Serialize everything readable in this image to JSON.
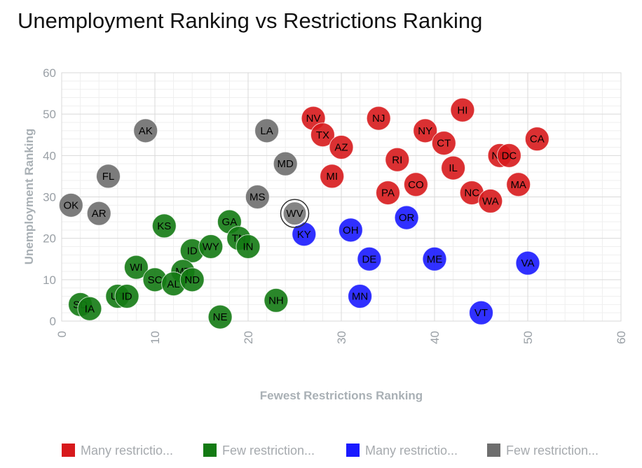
{
  "chart_data": {
    "type": "scatter",
    "title": "Unemployment Ranking vs Restrictions Ranking",
    "xlabel": "Fewest Restrictions Ranking",
    "ylabel": "Unemployment Ranking",
    "xlim": [
      0,
      60
    ],
    "ylim": [
      0,
      60
    ],
    "xticks": [
      "0",
      "10",
      "20",
      "30",
      "40",
      "50",
      "60"
    ],
    "yticks": [
      "0",
      "10",
      "20",
      "30",
      "40",
      "50",
      "60"
    ],
    "grid": true,
    "legend_position": "bottom",
    "highlighted_point": "WV",
    "series": [
      {
        "name": "Many restrictio...",
        "color": "#d7191c",
        "points": [
          {
            "label": "NV",
            "x": 27,
            "y": 49
          },
          {
            "label": "NJ",
            "x": 34,
            "y": 49
          },
          {
            "label": "HI",
            "x": 43,
            "y": 51
          },
          {
            "label": "NY",
            "x": 39,
            "y": 46
          },
          {
            "label": "TX",
            "x": 28,
            "y": 45
          },
          {
            "label": "CT",
            "x": 41,
            "y": 43
          },
          {
            "label": "AZ",
            "x": 30,
            "y": 42
          },
          {
            "label": "CA",
            "x": 51,
            "y": 44
          },
          {
            "label": "RI",
            "x": 36,
            "y": 39
          },
          {
            "label": "IL",
            "x": 42,
            "y": 37
          },
          {
            "label": "NM",
            "x": 47,
            "y": 40
          },
          {
            "label": "MI",
            "x": 29,
            "y": 35
          },
          {
            "label": "PA",
            "x": 35,
            "y": 31
          },
          {
            "label": "CO",
            "x": 38,
            "y": 33
          },
          {
            "label": "MA",
            "x": 49,
            "y": 33
          },
          {
            "label": "NC",
            "x": 44,
            "y": 31
          },
          {
            "label": "WA",
            "x": 46,
            "y": 29
          },
          {
            "label": "DC",
            "x": 48,
            "y": 40
          }
        ]
      },
      {
        "name": "Few restriction...",
        "color": "#137a13",
        "points": [
          {
            "label": "KS",
            "x": 11,
            "y": 23
          },
          {
            "label": "GA",
            "x": 18,
            "y": 24
          },
          {
            "label": "TN",
            "x": 19,
            "y": 20
          },
          {
            "label": "ID",
            "x": 14,
            "y": 17
          },
          {
            "label": "WY",
            "x": 16,
            "y": 18
          },
          {
            "label": "IN",
            "x": 20,
            "y": 18
          },
          {
            "label": "WI",
            "x": 8,
            "y": 13
          },
          {
            "label": "MT",
            "x": 13,
            "y": 12
          },
          {
            "label": "SC",
            "x": 10,
            "y": 10
          },
          {
            "label": "AL",
            "x": 12,
            "y": 9
          },
          {
            "label": "ND",
            "x": 14,
            "y": 10
          },
          {
            "label": "UT",
            "x": 6,
            "y": 6
          },
          {
            "label": "ID",
            "x": 7,
            "y": 6
          },
          {
            "label": "NH",
            "x": 23,
            "y": 5
          },
          {
            "label": "SD",
            "x": 2,
            "y": 4
          },
          {
            "label": "IA",
            "x": 3,
            "y": 3
          },
          {
            "label": "NE",
            "x": 17,
            "y": 1
          }
        ]
      },
      {
        "name": "Many restrictio...",
        "color": "#1a1aff",
        "points": [
          {
            "label": "OR",
            "x": 37,
            "y": 25
          },
          {
            "label": "OH",
            "x": 31,
            "y": 22
          },
          {
            "label": "KY",
            "x": 26,
            "y": 21
          },
          {
            "label": "DE",
            "x": 33,
            "y": 15
          },
          {
            "label": "ME",
            "x": 40,
            "y": 15
          },
          {
            "label": "VA",
            "x": 50,
            "y": 14
          },
          {
            "label": "MN",
            "x": 32,
            "y": 6
          },
          {
            "label": "VT",
            "x": 45,
            "y": 2
          }
        ]
      },
      {
        "name": "Few restriction...",
        "color": "#6e6e6e",
        "points": [
          {
            "label": "AK",
            "x": 9,
            "y": 46
          },
          {
            "label": "LA",
            "x": 22,
            "y": 46
          },
          {
            "label": "MD",
            "x": 24,
            "y": 38
          },
          {
            "label": "FL",
            "x": 5,
            "y": 35
          },
          {
            "label": "MS",
            "x": 21,
            "y": 30
          },
          {
            "label": "OK",
            "x": 1,
            "y": 28
          },
          {
            "label": "AR",
            "x": 4,
            "y": 26
          },
          {
            "label": "WV",
            "x": 25,
            "y": 26
          }
        ]
      }
    ]
  }
}
